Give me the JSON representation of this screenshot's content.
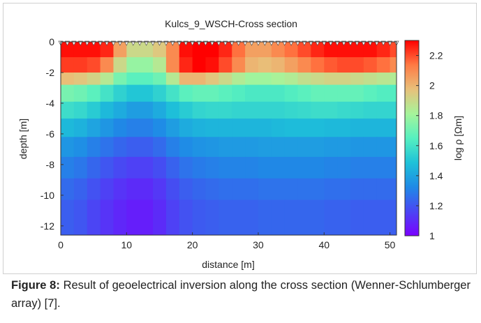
{
  "chart_data": {
    "type": "heatmap",
    "title": "Kulcs_9_WSCH-Cross section",
    "xlabel": "distance [m]",
    "ylabel": "depth [m]",
    "colorbar_label": "log ρ [Ωm]",
    "xlim": [
      0,
      51
    ],
    "ylim": [
      -12.6,
      0
    ],
    "x_ticks": [
      0,
      10,
      20,
      30,
      40,
      50
    ],
    "x_tick_labels": [
      "0",
      "10",
      "20",
      "30",
      "40",
      "50"
    ],
    "y_ticks": [
      0,
      -2,
      -4,
      -6,
      -8,
      -10,
      -12
    ],
    "y_tick_labels": [
      "0",
      "-2",
      "-4",
      "-6",
      "-8",
      "-10",
      "-12"
    ],
    "color_range": [
      1.0,
      2.3
    ],
    "colorbar_ticks": [
      1,
      1.2,
      1.4,
      1.6,
      1.8,
      2,
      2.2
    ],
    "colorbar_tick_labels": [
      "1",
      "1.2",
      "1.4",
      "1.6",
      "1.8",
      "2",
      "2.2"
    ],
    "colormap": [
      "#7a00ff",
      "#4a46f4",
      "#1f8ae6",
      "#1ec2d8",
      "#56f0c0",
      "#a6f49a",
      "#e8c07a",
      "#ff7a44",
      "#ff0000"
    ],
    "grid": false,
    "electrode_count": 52,
    "layer_depth_bounds": [
      [
        0,
        1.0
      ],
      [
        1.0,
        2.0
      ],
      [
        2.0,
        2.8
      ],
      [
        2.8,
        3.9
      ],
      [
        3.9,
        5.0
      ],
      [
        5.0,
        6.2
      ],
      [
        6.2,
        7.5
      ],
      [
        7.5,
        8.9
      ],
      [
        8.9,
        10.3
      ],
      [
        10.3,
        12.6
      ]
    ],
    "column_edges": [
      0,
      2,
      4,
      6,
      8,
      10,
      12,
      14,
      16,
      18,
      20,
      22,
      24,
      26,
      28,
      30,
      32,
      34,
      36,
      38,
      40,
      42,
      44,
      46,
      48,
      50,
      51
    ],
    "values": [
      [
        2.28,
        2.28,
        2.28,
        2.25,
        2.05,
        1.9,
        1.9,
        1.95,
        2.1,
        2.28,
        2.3,
        2.3,
        2.25,
        2.15,
        2.05,
        2.05,
        2.1,
        2.15,
        2.2,
        2.25,
        2.28,
        2.28,
        2.28,
        2.28,
        2.25,
        2.2
      ],
      [
        2.22,
        2.22,
        2.2,
        2.1,
        1.9,
        1.78,
        1.78,
        1.85,
        2.1,
        2.25,
        2.3,
        2.28,
        2.2,
        2.1,
        2.0,
        1.98,
        2.0,
        2.05,
        2.1,
        2.15,
        2.18,
        2.2,
        2.2,
        2.18,
        2.15,
        2.1
      ],
      [
        1.98,
        1.96,
        1.92,
        1.85,
        1.72,
        1.66,
        1.66,
        1.7,
        1.85,
        2.0,
        2.0,
        1.96,
        1.9,
        1.84,
        1.8,
        1.8,
        1.82,
        1.84,
        1.88,
        1.9,
        1.92,
        1.92,
        1.9,
        1.88,
        1.86,
        1.84
      ],
      [
        1.72,
        1.7,
        1.66,
        1.6,
        1.54,
        1.5,
        1.5,
        1.54,
        1.6,
        1.66,
        1.68,
        1.68,
        1.66,
        1.64,
        1.62,
        1.62,
        1.62,
        1.64,
        1.66,
        1.68,
        1.68,
        1.68,
        1.68,
        1.66,
        1.64,
        1.64
      ],
      [
        1.58,
        1.56,
        1.52,
        1.46,
        1.42,
        1.38,
        1.38,
        1.42,
        1.48,
        1.52,
        1.55,
        1.56,
        1.56,
        1.55,
        1.55,
        1.55,
        1.55,
        1.56,
        1.57,
        1.58,
        1.58,
        1.57,
        1.56,
        1.55,
        1.55,
        1.55
      ],
      [
        1.46,
        1.44,
        1.4,
        1.36,
        1.32,
        1.3,
        1.3,
        1.33,
        1.38,
        1.42,
        1.44,
        1.45,
        1.45,
        1.45,
        1.45,
        1.45,
        1.46,
        1.47,
        1.47,
        1.47,
        1.46,
        1.46,
        1.45,
        1.45,
        1.45,
        1.45
      ],
      [
        1.36,
        1.34,
        1.3,
        1.27,
        1.24,
        1.22,
        1.22,
        1.25,
        1.3,
        1.33,
        1.35,
        1.36,
        1.37,
        1.37,
        1.37,
        1.38,
        1.38,
        1.38,
        1.38,
        1.38,
        1.37,
        1.37,
        1.36,
        1.36,
        1.36,
        1.36
      ],
      [
        1.3,
        1.28,
        1.24,
        1.2,
        1.17,
        1.15,
        1.15,
        1.18,
        1.23,
        1.27,
        1.29,
        1.3,
        1.31,
        1.31,
        1.31,
        1.32,
        1.32,
        1.32,
        1.32,
        1.32,
        1.31,
        1.31,
        1.3,
        1.3,
        1.3,
        1.3
      ],
      [
        1.25,
        1.23,
        1.19,
        1.15,
        1.12,
        1.1,
        1.1,
        1.13,
        1.18,
        1.22,
        1.24,
        1.25,
        1.26,
        1.26,
        1.26,
        1.27,
        1.27,
        1.27,
        1.27,
        1.27,
        1.26,
        1.26,
        1.25,
        1.25,
        1.25,
        1.25
      ],
      [
        1.22,
        1.2,
        1.16,
        1.12,
        1.09,
        1.07,
        1.07,
        1.1,
        1.15,
        1.19,
        1.21,
        1.22,
        1.23,
        1.23,
        1.23,
        1.24,
        1.24,
        1.24,
        1.24,
        1.24,
        1.23,
        1.23,
        1.22,
        1.22,
        1.22,
        1.22
      ]
    ]
  },
  "caption": {
    "label": "Figure 8:",
    "text": " Result of geoelectrical inversion along the cross section (Wenner-Schlumberger array) [7]."
  }
}
